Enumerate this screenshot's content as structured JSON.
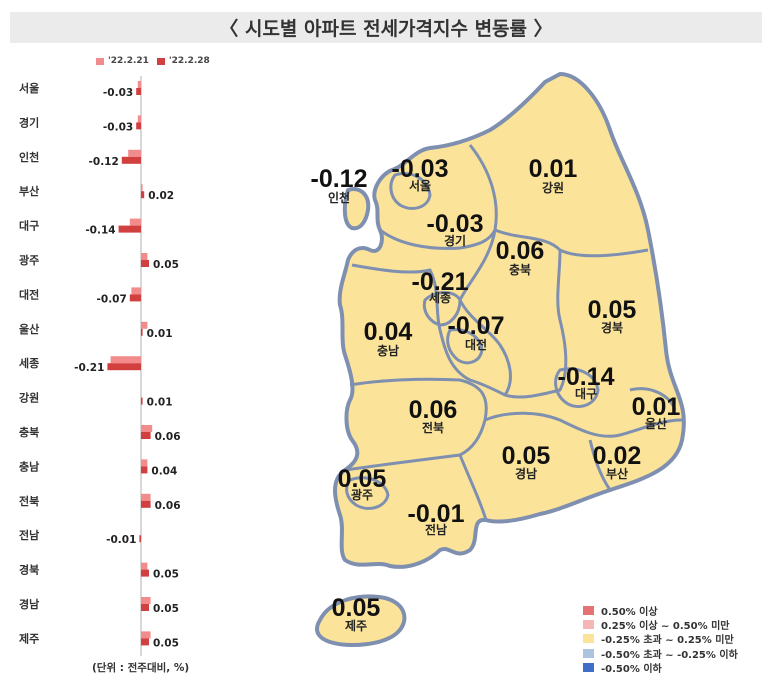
{
  "title": "〈 시도별 아파트 전세가격지수 변동률 〉",
  "legend_top": [
    {
      "label": "'22.2.21",
      "color": "#f28b8b"
    },
    {
      "label": "'22.2.28",
      "color": "#d23f3f"
    }
  ],
  "unit_note": "(단위 : 전주대비, %)",
  "chart_data": {
    "type": "bar",
    "orientation": "horizontal",
    "categories": [
      "서울",
      "경기",
      "인천",
      "부산",
      "대구",
      "광주",
      "대전",
      "울산",
      "세종",
      "강원",
      "충북",
      "충남",
      "전북",
      "전남",
      "경북",
      "경남",
      "제주"
    ],
    "series": [
      {
        "name": "'22.2.21",
        "values": [
          -0.02,
          -0.02,
          -0.08,
          0.01,
          -0.07,
          0.04,
          -0.06,
          0.04,
          -0.19,
          0.0,
          0.07,
          0.04,
          0.06,
          0.0,
          0.04,
          0.06,
          0.06
        ]
      },
      {
        "name": "'22.2.28",
        "values": [
          -0.03,
          -0.03,
          -0.12,
          0.02,
          -0.14,
          0.05,
          -0.07,
          0.01,
          -0.21,
          0.01,
          0.06,
          0.04,
          0.06,
          -0.01,
          0.05,
          0.05,
          0.05
        ]
      }
    ],
    "data_labels": [
      "-0.03",
      "-0.03",
      "-0.12",
      "0.02",
      "-0.14",
      "0.05",
      "-0.07",
      "0.01",
      "-0.21",
      "0.01",
      "0.06",
      "0.04",
      "0.06",
      "-0.01",
      "0.05",
      "0.05",
      "0.05"
    ]
  },
  "map": {
    "regions": [
      {
        "name": "서울",
        "value": "-0.03"
      },
      {
        "name": "인천",
        "value": "-0.12"
      },
      {
        "name": "강원",
        "value": "0.01"
      },
      {
        "name": "경기",
        "value": "-0.03"
      },
      {
        "name": "충북",
        "value": "0.06"
      },
      {
        "name": "세종",
        "value": "-0.21"
      },
      {
        "name": "경북",
        "value": "0.05"
      },
      {
        "name": "충남",
        "value": "0.04"
      },
      {
        "name": "대전",
        "value": "-0.07"
      },
      {
        "name": "대구",
        "value": "-0.14"
      },
      {
        "name": "울산",
        "value": "0.01"
      },
      {
        "name": "전북",
        "value": "0.06"
      },
      {
        "name": "경남",
        "value": "0.05"
      },
      {
        "name": "부산",
        "value": "0.02"
      },
      {
        "name": "광주",
        "value": "0.05"
      },
      {
        "name": "전남",
        "value": "-0.01"
      },
      {
        "name": "제주",
        "value": "0.05"
      }
    ],
    "fill_color": "#fbe49a",
    "border_color": "#7f8fb0"
  },
  "map_legend": [
    {
      "label": "0.50% 이상",
      "color": "#e57373"
    },
    {
      "label": "0.25% 이상 ~ 0.50% 미만",
      "color": "#f4b6b6"
    },
    {
      "label": "-0.25% 초과 ~ 0.25% 미만",
      "color": "#fbe49a"
    },
    {
      "label": "-0.50% 초과 ~ -0.25% 이하",
      "color": "#aec3e0"
    },
    {
      "label": "-0.50% 이하",
      "color": "#3f6fc4"
    }
  ]
}
